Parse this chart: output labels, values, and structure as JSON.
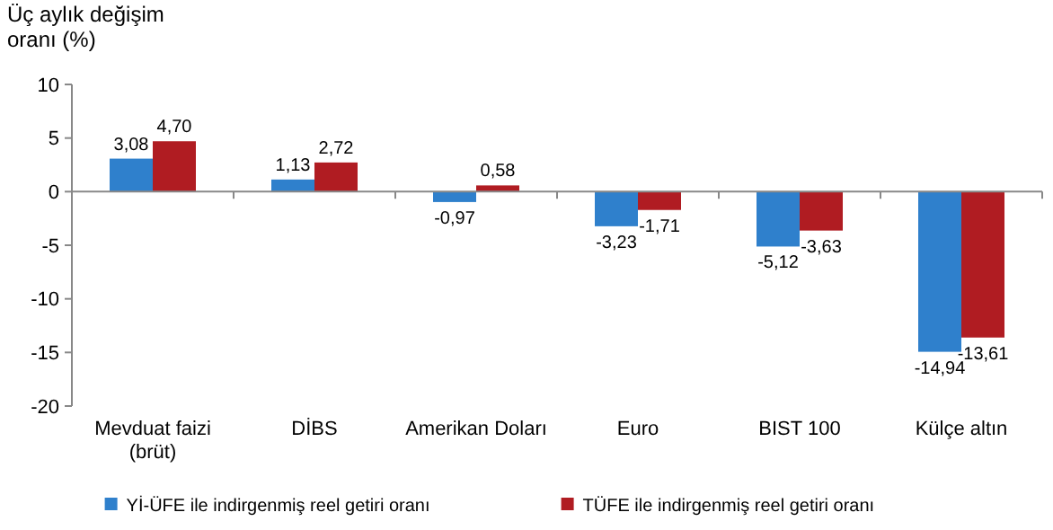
{
  "chart_data": {
    "type": "bar",
    "ylabel": "Üç aylık değişim oranı (%)",
    "categories": [
      "Mevduat faizi (brüt)",
      "DİBS",
      "Amerikan Doları",
      "Euro",
      "BIST 100",
      "Külçe altın"
    ],
    "series": [
      {
        "name": "Yİ-ÜFE ile indirgenmiş reel getiri oranı",
        "color": "#2f80cc",
        "values": [
          3.08,
          1.13,
          -0.97,
          -3.23,
          -5.12,
          -14.94
        ],
        "value_labels": [
          "3,08",
          "1,13",
          "-0,97",
          "-3,23",
          "-5,12",
          "-14,94"
        ]
      },
      {
        "name": "TÜFE ile indirgenmiş reel getiri oranı",
        "color": "#b01c22",
        "values": [
          4.7,
          2.72,
          0.58,
          -1.71,
          -3.63,
          -13.61
        ],
        "value_labels": [
          "4,70",
          "2,72",
          "0,58",
          "-1,71",
          "-3,63",
          "-13,61"
        ]
      }
    ],
    "ylim": [
      -20,
      10
    ],
    "yticks": [
      -20,
      -15,
      -10,
      -5,
      0,
      5,
      10
    ],
    "legend": "bottom"
  }
}
